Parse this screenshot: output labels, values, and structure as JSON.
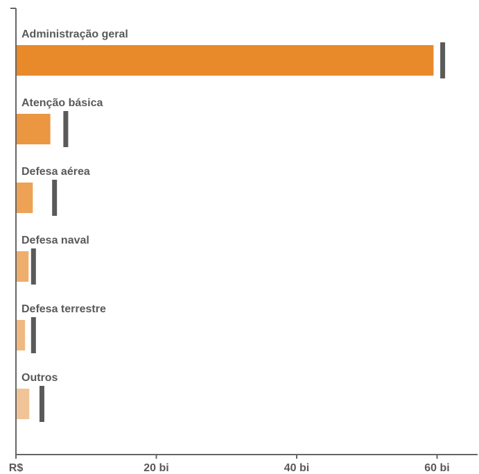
{
  "chart_data": {
    "type": "bar",
    "orientation": "horizontal",
    "categories": [
      "Administração geral",
      "Atenção básica",
      "Defesa aérea",
      "Defesa naval",
      "Defesa terrestre",
      "Outros"
    ],
    "series": [
      {
        "values": [
          59.5,
          4.9,
          2.4,
          1.8,
          1.3,
          1.9
        ]
      },
      {
        "marker": "vertical-line",
        "values": [
          60.8,
          7.1,
          5.5,
          2.5,
          2.5,
          3.7
        ]
      }
    ],
    "bar_colors": [
      "#e8892a",
      "#eb9641",
      "#eda256",
      "#efae6c",
      "#f0b982",
      "#f1c497"
    ],
    "marker_color": "#5a5a5a",
    "axis_color": "#666666",
    "xlim": [
      0,
      65
    ],
    "xticks": [
      {
        "value": 0,
        "label": "R$"
      },
      {
        "value": 20,
        "label": "20 bi"
      },
      {
        "value": 40,
        "label": "40 bi"
      },
      {
        "value": 60,
        "label": "60 bi"
      }
    ],
    "grid": false,
    "legend": "none"
  }
}
